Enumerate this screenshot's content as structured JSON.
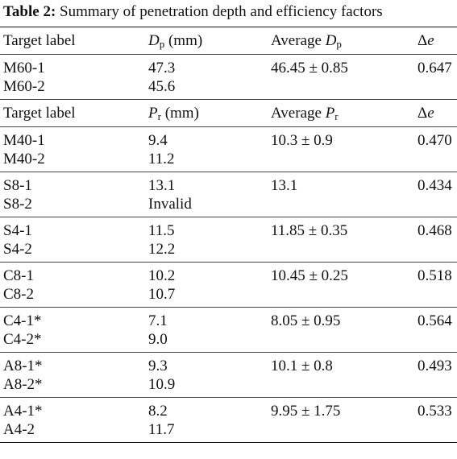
{
  "caption": {
    "label": "Table 2:",
    "text": " Summary of penetration depth and efficiency factors"
  },
  "header1": {
    "target": "Target label",
    "col2_sym": "D",
    "col2_sub": "p",
    "col2_unit": " (mm)",
    "col3_pre": "Average ",
    "col3_sym": "D",
    "col3_sub": "p",
    "col4": "Δe"
  },
  "header2": {
    "target": "Target label",
    "col2_sym": "P",
    "col2_sub": "r",
    "col2_unit": " (mm)",
    "col3_pre": "Average ",
    "col3_sym": "P",
    "col3_sub": "r",
    "col4": "Δe"
  },
  "groups": [
    {
      "labels": [
        "M60-1",
        "M60-2"
      ],
      "values": [
        "47.3",
        "45.6"
      ],
      "average": "46.45 ± 0.85",
      "delta_e": "0.647"
    },
    {
      "labels": [
        "M40-1",
        "M40-2"
      ],
      "values": [
        "9.4",
        "11.2"
      ],
      "average": "10.3 ± 0.9",
      "delta_e": "0.470"
    },
    {
      "labels": [
        "S8-1",
        "S8-2"
      ],
      "values": [
        "13.1",
        "Invalid"
      ],
      "average": "13.1",
      "delta_e": "0.434"
    },
    {
      "labels": [
        "S4-1",
        "S4-2"
      ],
      "values": [
        "11.5",
        "12.2"
      ],
      "average": "11.85 ± 0.35",
      "delta_e": "0.468"
    },
    {
      "labels": [
        "C8-1",
        "C8-2"
      ],
      "values": [
        "10.2",
        "10.7"
      ],
      "average": "10.45 ± 0.25",
      "delta_e": "0.518"
    },
    {
      "labels": [
        "C4-1*",
        "C4-2*"
      ],
      "values": [
        "7.1",
        "9.0"
      ],
      "average": "8.05 ± 0.95",
      "delta_e": "0.564"
    },
    {
      "labels": [
        "A8-1*",
        "A8-2*"
      ],
      "values": [
        "9.3",
        "10.9"
      ],
      "average": "10.1 ± 0.8",
      "delta_e": "0.493"
    },
    {
      "labels": [
        "A4-1*",
        "A4-2"
      ],
      "values": [
        "8.2",
        "11.7"
      ],
      "average": "9.95 ± 1.75",
      "delta_e": "0.533"
    }
  ]
}
